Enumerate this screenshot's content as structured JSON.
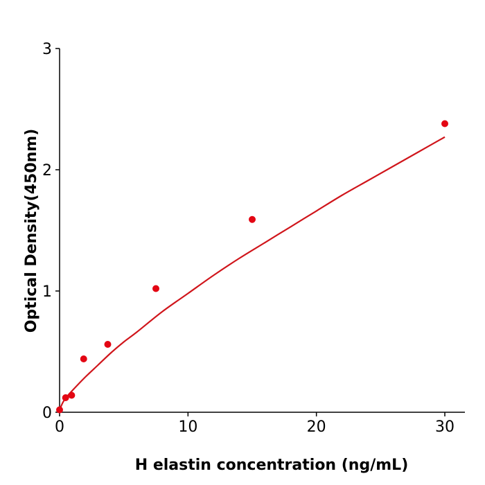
{
  "chart_data": {
    "type": "scatter",
    "title": "",
    "xlabel": "H  elastin concentration (ng/mL)",
    "ylabel": "Optical Density(450nm)",
    "xlim": [
      0,
      31.5
    ],
    "ylim": [
      0,
      3
    ],
    "xticks": [
      0,
      10,
      20,
      30
    ],
    "yticks": [
      0,
      1,
      2,
      3
    ],
    "xtick_labels": [
      "0",
      "10",
      "20",
      "30"
    ],
    "ytick_labels": [
      "0",
      "1",
      "2",
      "3"
    ],
    "grid": false,
    "colors": {
      "points": "#e30613",
      "curve": "#d0151b",
      "axis": "#000000"
    },
    "series": [
      {
        "x": [
          0,
          0.469,
          0.938,
          1.875,
          3.75,
          7.5,
          15,
          30
        ],
        "y": [
          0.02,
          0.12,
          0.14,
          0.44,
          0.56,
          1.02,
          1.59,
          2.38
        ]
      }
    ],
    "fit_curve": {
      "x": [
        0,
        0.25,
        0.5,
        1,
        2,
        3,
        4,
        5,
        6,
        8,
        10,
        12,
        14,
        16,
        18,
        20,
        22,
        24,
        26,
        28,
        30
      ],
      "y": [
        0.02,
        0.08,
        0.12,
        0.18,
        0.29,
        0.39,
        0.49,
        0.58,
        0.66,
        0.83,
        0.98,
        1.13,
        1.27,
        1.4,
        1.53,
        1.66,
        1.79,
        1.91,
        2.03,
        2.15,
        2.27
      ]
    }
  }
}
